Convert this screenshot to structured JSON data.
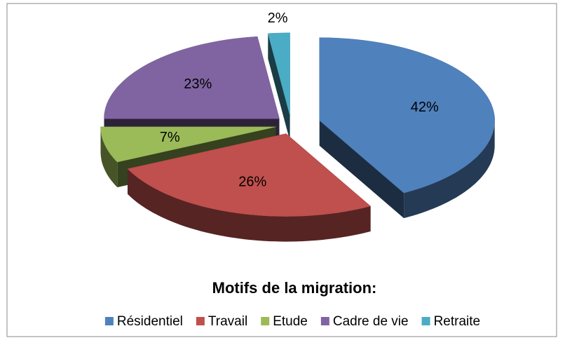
{
  "chart_data": {
    "type": "pie3d",
    "legend_title": "Motifs de la migration:",
    "categories": [
      "Résidentiel",
      "Travail",
      "Etude",
      "Cadre de vie",
      "Retraite"
    ],
    "values": [
      42,
      26,
      7,
      23,
      2
    ],
    "value_labels": [
      "42%",
      "26%",
      "7%",
      "23%",
      "2%"
    ],
    "colors": [
      "#4f81bd",
      "#c0504d",
      "#9bbb59",
      "#8064a2",
      "#4bacc6"
    ],
    "legend": "bottom"
  }
}
